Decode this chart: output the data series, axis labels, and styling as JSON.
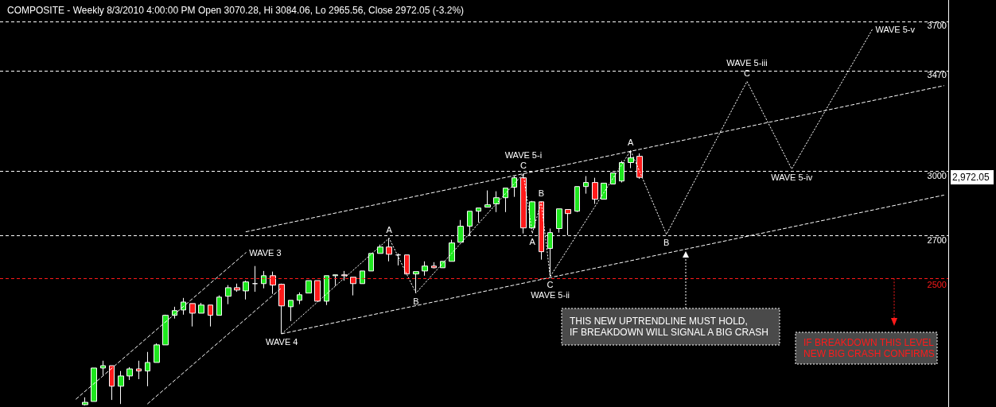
{
  "chart_data": {
    "type": "candlestick",
    "title": "COMPOSITE - Weekly 8/3/2010 4:00:00 PM Open 3070.28, Hi 3084.06, Lo 2965.56, Close 2972.05 (-3.2%)",
    "categories": [
      null,
      null,
      null,
      null,
      null,
      null,
      null,
      null,
      null,
      null,
      null,
      null,
      null,
      null,
      null,
      null,
      null,
      null,
      null,
      null,
      null,
      null,
      null,
      null,
      null,
      null,
      null,
      null,
      null,
      null,
      null,
      null,
      null,
      null,
      null,
      null,
      null,
      null,
      null,
      null,
      null,
      null,
      null,
      null,
      null,
      null,
      null,
      null,
      null,
      null,
      null,
      null,
      null,
      null,
      null,
      null,
      null,
      null,
      null,
      null,
      null,
      null,
      null,
      null,
      null,
      null,
      null,
      null,
      null,
      null,
      null,
      null,
      null,
      null,
      null,
      null,
      null,
      null,
      null,
      null,
      null,
      null,
      null,
      null,
      null,
      null,
      null,
      null,
      null,
      null,
      null,
      null,
      null,
      null,
      null,
      null,
      null,
      null,
      null,
      null,
      null,
      null,
      null,
      null,
      null,
      null
    ],
    "series": [
      {
        "ohlc": [
          null,
          null,
          null,
          null,
          null,
          null,
          null,
          null,
          null,
          [
            1911,
            1945,
            1907,
            1922
          ],
          [
            1926,
            2082,
            1926,
            2082
          ],
          [
            2082,
            2116,
            2049,
            2093
          ],
          [
            2093,
            2093,
            1933,
            1997
          ],
          [
            1997,
            2068,
            1914,
            2045
          ],
          [
            2045,
            2086,
            2026,
            2078
          ],
          [
            2078,
            2116,
            2030,
            2068
          ],
          [
            2068,
            2157,
            1997,
            2108
          ],
          [
            2108,
            2197,
            2108,
            2190
          ],
          [
            2190,
            2331,
            2190,
            2328
          ],
          [
            2328,
            2368,
            2313,
            2350
          ],
          [
            2353,
            2409,
            2331,
            2390
          ],
          [
            2383,
            2383,
            2276,
            2338
          ],
          [
            2338,
            2386,
            2338,
            2376
          ],
          [
            2376,
            2376,
            2276,
            2328
          ],
          [
            2328,
            2421,
            2328,
            2413
          ],
          [
            2417,
            2469,
            2380,
            2457
          ],
          [
            2457,
            2476,
            2438,
            2446
          ],
          [
            2442,
            2490,
            2402,
            2484
          ],
          [
            2476,
            2558,
            2438,
            2476
          ],
          [
            2476,
            2535,
            2454,
            2513
          ],
          [
            2513,
            2532,
            2428,
            2469
          ],
          [
            2473,
            2476,
            2242,
            2372
          ],
          [
            2368,
            2398,
            2301,
            2398
          ],
          [
            2398,
            2435,
            2380,
            2424
          ],
          [
            2432,
            2490,
            2432,
            2490
          ],
          [
            2490,
            2490,
            2394,
            2394
          ],
          [
            2394,
            2513,
            2376,
            2513
          ],
          [
            2513,
            2517,
            2465,
            2517
          ],
          [
            2517,
            2535,
            2490,
            2513
          ],
          [
            2506,
            2506,
            2421,
            2476
          ],
          [
            2476,
            2535,
            2476,
            2535
          ],
          [
            2535,
            2617,
            2535,
            2617
          ],
          [
            2617,
            2658,
            2617,
            2647
          ],
          [
            2647,
            2688,
            2580,
            2613
          ],
          [
            2610,
            2617,
            2561,
            2610
          ],
          [
            2610,
            2610,
            2521,
            2521
          ],
          [
            2521,
            2532,
            2432,
            2532
          ],
          [
            2535,
            2580,
            2513,
            2558
          ],
          [
            2558,
            2576,
            2547,
            2550
          ],
          [
            2550,
            2580,
            2550,
            2580
          ],
          [
            2580,
            2681,
            2580,
            2666
          ],
          [
            2669,
            2773,
            2669,
            2744
          ],
          [
            2744,
            2814,
            2699,
            2814
          ],
          [
            2814,
            2829,
            2762,
            2829
          ],
          [
            2833,
            2911,
            2833,
            2844
          ],
          [
            2848,
            2907,
            2810,
            2877
          ],
          [
            2877,
            2922,
            2810,
            2922
          ],
          [
            2926,
            2978,
            2881,
            2970
          ],
          [
            2970,
            2989,
            2710,
            2736
          ],
          [
            2736,
            2862,
            2736,
            2858
          ],
          [
            2858,
            2858,
            2588,
            2625
          ],
          [
            2640,
            2733,
            2509,
            2714
          ],
          [
            2733,
            2825,
            2714,
            2825
          ],
          [
            2822,
            2822,
            2702,
            2803
          ],
          [
            2814,
            2929,
            2810,
            2929
          ],
          [
            2929,
            2978,
            2896,
            2948
          ],
          [
            2948,
            2970,
            2848,
            2870
          ],
          [
            2870,
            2945,
            2870,
            2945
          ],
          [
            2941,
            2993,
            2941,
            2993
          ],
          [
            2955,
            3049,
            2948,
            3041
          ],
          [
            3041,
            3097,
            3015,
            3063
          ],
          [
            3070.28,
            3084.06,
            2965.56,
            2972.05
          ],
          null,
          null,
          null,
          null,
          null,
          null,
          null,
          null,
          null,
          null,
          null,
          null,
          null,
          null,
          null,
          null,
          null,
          null,
          null,
          null,
          null,
          null,
          null,
          null,
          null,
          null,
          null,
          null,
          null,
          null,
          null,
          null,
          null,
          null
        ],
        "colors": [
          null,
          null,
          null,
          null,
          null,
          null,
          null,
          null,
          null,
          "#1ee61e",
          "#1ee61e",
          "#1ee61e",
          "#ff1a1a",
          "#1ee61e",
          "#1ee61e",
          "#ff1a1a",
          "#1ee61e",
          "#1ee61e",
          "#1ee61e",
          "#1ee61e",
          "#1ee61e",
          "#ff1a1a",
          "#1ee61e",
          "#ff1a1a",
          "#1ee61e",
          "#1ee61e",
          "#ff1a1a",
          "#1ee61e",
          "#ffffff",
          "#1ee61e",
          "#ff1a1a",
          "#ff1a1a",
          "#1ee61e",
          "#1ee61e",
          "#1ee61e",
          "#ff1a1a",
          "#1ee61e",
          "#1ee61e",
          "#ff1a1a",
          "#ff1a1a",
          "#1ee61e",
          "#1ee61e",
          "#1ee61e",
          "#ff1a1a",
          "#ffffff",
          "#ff1a1a",
          "#1ee61e",
          "#1ee61e",
          "#ff1a1a",
          "#1ee61e",
          "#1ee61e",
          "#1ee61e",
          "#1ee61e",
          "#1ee61e",
          "#1ee61e",
          "#1ee61e",
          "#1ee61e",
          "#1ee61e",
          "#ff1a1a",
          "#1ee61e",
          "#ff1a1a",
          "#1ee61e",
          "#1ee61e",
          "#ff1a1a",
          "#1ee61e",
          "#1ee61e",
          "#ff1a1a",
          "#1ee61e",
          "#1ee61e",
          "#1ee61e",
          "#1ee61e",
          "#ff1a1a",
          null,
          null,
          null,
          null,
          null,
          null,
          null,
          null,
          null,
          null,
          null,
          null,
          null,
          null,
          null,
          null,
          null,
          null,
          null,
          null,
          null,
          null,
          null,
          null,
          null,
          null,
          null,
          null,
          null,
          null,
          null,
          null,
          null,
          null
        ]
      },
      {
        "type": "line",
        "color": "#ffffff",
        "line_style": "dashed",
        "values": [
          null,
          null,
          null,
          null,
          null,
          null,
          null,
          null,
          1937,
          null,
          null,
          null,
          null,
          null,
          null,
          null,
          null,
          null,
          null,
          null,
          null,
          null,
          null,
          null,
          null,
          null,
          null,
          2621,
          null,
          null,
          null,
          null,
          null,
          null,
          null,
          null,
          null,
          null,
          null,
          null,
          null,
          null,
          null,
          null,
          null,
          null,
          null,
          null,
          null,
          null,
          null,
          null,
          null,
          null,
          null,
          null,
          null,
          null,
          null,
          null,
          null,
          null,
          null,
          null,
          null,
          null,
          null,
          null,
          null,
          null,
          null,
          null,
          null,
          null,
          null,
          null,
          null,
          null,
          null,
          null,
          null,
          null,
          null,
          null,
          null,
          null,
          null,
          null,
          null,
          null,
          null,
          null,
          null,
          null,
          null,
          null,
          null,
          null,
          null,
          null,
          null,
          null,
          null,
          null,
          null,
          null
        ],
        "value_labels": [
          null,
          null,
          null,
          null,
          null,
          null,
          null,
          null,
          null,
          null,
          null,
          null,
          null,
          null,
          null,
          null,
          null,
          null,
          null,
          null,
          null,
          null,
          null,
          null,
          null,
          null,
          null,
          "WAVE 3",
          null,
          null,
          null,
          null,
          null,
          null,
          null,
          null,
          null,
          null,
          null,
          null,
          null,
          null,
          null,
          null,
          null,
          null,
          null,
          null,
          null,
          null,
          null,
          null,
          null,
          null,
          null,
          null,
          null,
          null,
          null,
          null,
          null,
          null,
          null,
          null,
          null,
          null,
          null,
          null,
          null,
          null,
          null,
          null,
          null,
          null,
          null,
          null,
          null,
          null,
          null,
          null,
          null,
          null,
          null,
          null,
          null,
          null,
          null,
          null,
          null,
          null,
          null,
          null,
          null,
          null,
          null,
          null,
          null,
          null,
          null,
          null,
          null,
          null,
          null,
          null,
          null,
          null
        ]
      },
      {
        "type": "line",
        "color": "#ffffff",
        "line_style": "dashed",
        "values": [
          null,
          null,
          null,
          null,
          null,
          null,
          null,
          null,
          null,
          null,
          null,
          null,
          null,
          null,
          null,
          null,
          1915,
          null,
          null,
          null,
          null,
          null,
          null,
          null,
          null,
          null,
          null,
          null,
          null,
          null,
          null,
          2457,
          null,
          null,
          null,
          null,
          null,
          null,
          null,
          null,
          null,
          null,
          null,
          null,
          null,
          null,
          null,
          null,
          null,
          null,
          null,
          null,
          null,
          null,
          null,
          null,
          null,
          null,
          null,
          null,
          null,
          null,
          null,
          null,
          null,
          null,
          null,
          null,
          null,
          null,
          null,
          null,
          null,
          null,
          null,
          null,
          null,
          null,
          null,
          null,
          null,
          null,
          null,
          null,
          null,
          null,
          null,
          null,
          null,
          null,
          null,
          null,
          null,
          null,
          null,
          null,
          null,
          null,
          null,
          null,
          null,
          null,
          null,
          null,
          null,
          null
        ]
      },
      {
        "type": "line",
        "color": "#ffffff",
        "line_style": "dashed",
        "values": [
          null,
          null,
          null,
          null,
          null,
          null,
          null,
          null,
          null,
          null,
          null,
          null,
          null,
          null,
          null,
          null,
          null,
          null,
          null,
          null,
          null,
          null,
          null,
          null,
          null,
          null,
          null,
          2718,
          null,
          null,
          null,
          null,
          null,
          null,
          null,
          null,
          null,
          null,
          null,
          null,
          null,
          null,
          null,
          null,
          null,
          null,
          null,
          null,
          null,
          null,
          null,
          null,
          null,
          null,
          null,
          null,
          null,
          null,
          null,
          null,
          null,
          null,
          null,
          null,
          null,
          null,
          null,
          null,
          null,
          null,
          null,
          null,
          null,
          null,
          null,
          null,
          null,
          null,
          null,
          null,
          null,
          null,
          null,
          null,
          null,
          null,
          null,
          null,
          null,
          null,
          null,
          null,
          null,
          null,
          null,
          null,
          null,
          null,
          null,
          null,
          null,
          null,
          null,
          null,
          null,
          3400
        ]
      },
      {
        "type": "line",
        "color": "#ffffff",
        "line_style": "dashed",
        "values": [
          null,
          null,
          null,
          null,
          null,
          null,
          null,
          null,
          null,
          null,
          null,
          null,
          null,
          null,
          null,
          null,
          null,
          null,
          null,
          null,
          null,
          null,
          null,
          null,
          null,
          null,
          null,
          null,
          null,
          null,
          null,
          2242,
          null,
          null,
          null,
          null,
          null,
          null,
          null,
          null,
          null,
          null,
          null,
          null,
          null,
          null,
          null,
          null,
          null,
          null,
          null,
          null,
          null,
          null,
          null,
          null,
          null,
          null,
          null,
          null,
          null,
          null,
          null,
          null,
          null,
          null,
          null,
          null,
          null,
          null,
          null,
          null,
          null,
          null,
          null,
          null,
          null,
          null,
          null,
          null,
          null,
          null,
          null,
          null,
          null,
          null,
          null,
          null,
          null,
          null,
          null,
          null,
          null,
          null,
          null,
          null,
          null,
          null,
          null,
          null,
          null,
          null,
          null,
          null,
          null,
          2889
        ]
      },
      {
        "type": "line",
        "color": "#ffffff",
        "line_style": "dotted",
        "values": [
          null,
          null,
          null,
          null,
          null,
          null,
          null,
          null,
          null,
          null,
          null,
          null,
          null,
          null,
          null,
          null,
          null,
          null,
          null,
          null,
          null,
          null,
          null,
          null,
          null,
          null,
          null,
          null,
          null,
          null,
          null,
          2242,
          null,
          null,
          null,
          null,
          null,
          null,
          null,
          null,
          null,
          null,
          null,
          2688,
          null,
          null,
          2432,
          null,
          null,
          null,
          null,
          null,
          null,
          null,
          null,
          null,
          null,
          null,
          2989,
          2710,
          2858,
          2509,
          null,
          null,
          null,
          null,
          null,
          null,
          null,
          null,
          3097,
          null,
          null,
          null,
          2706,
          null,
          null,
          null,
          null,
          null,
          null,
          null,
          null,
          3420,
          null,
          null,
          null,
          null,
          3011,
          null,
          null,
          null,
          null,
          null,
          null,
          null,
          null,
          3662,
          null,
          null,
          null,
          null,
          null,
          null,
          null,
          null
        ],
        "value_labels": [
          null,
          null,
          null,
          null,
          null,
          null,
          null,
          null,
          null,
          null,
          null,
          null,
          null,
          null,
          null,
          null,
          null,
          null,
          null,
          null,
          null,
          null,
          null,
          null,
          null,
          null,
          null,
          null,
          null,
          null,
          null,
          "WAVE 4",
          null,
          null,
          null,
          null,
          null,
          null,
          null,
          null,
          null,
          null,
          null,
          "A",
          null,
          null,
          "B",
          null,
          null,
          null,
          null,
          null,
          null,
          null,
          null,
          null,
          null,
          null,
          "WAVE 5-i\nC",
          "A",
          "B",
          "C\nWAVE 5-ii",
          null,
          null,
          null,
          null,
          null,
          null,
          null,
          null,
          "A",
          null,
          null,
          null,
          "B",
          null,
          null,
          null,
          null,
          null,
          null,
          null,
          null,
          "WAVE 5-iii\nC",
          null,
          null,
          null,
          null,
          "WAVE 5-iv",
          null,
          null,
          null,
          null,
          null,
          null,
          null,
          null,
          "WAVE 5-v",
          null,
          null,
          null,
          null,
          null,
          null,
          null,
          null
        ]
      }
    ],
    "ylim": [
      1900,
      3800
    ],
    "yticks": [
      2700,
      3000,
      3470,
      3700
    ],
    "grid": "y",
    "tick_labels": "y",
    "marker": "none",
    "ref_lines": [
      {
        "axis": "y",
        "value": 2500,
        "label": "2500",
        "color": "#ff1a1a",
        "line_style": "dashed"
      }
    ],
    "annotations": [
      "2,972.05",
      "THIS NEW UPTRENDLINE MUST HOLD,\nIF BREAKDOWN WILL SIGNAL A BIG CRASH",
      "IF BREAKDOWN THIS LEVEL\nNEW BIG CRASH CONFIRMS"
    ]
  }
}
